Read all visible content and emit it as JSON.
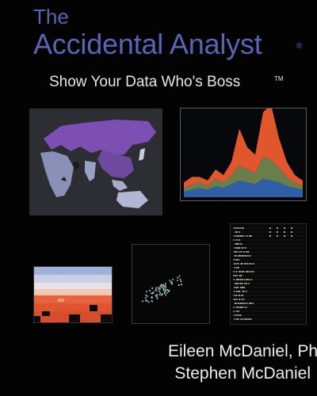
{
  "cover": {
    "title_line1": "The",
    "title_line2": "Accidental Analyst",
    "registered_mark": "®",
    "subtitle": "Show Your Data Who's Boss",
    "trademark": "TM",
    "authors": [
      "Eileen McDaniel, PhD",
      "Stephen McDaniel"
    ]
  },
  "colors": {
    "title": "#5a64b4",
    "subtitle": "#e6e6e6",
    "background": "#030303"
  },
  "illustrations": {
    "map_label": "world-map-thumbnail",
    "area_chart_label": "stacked-area-chart-thumbnail",
    "heatmap_label": "heatmap-thumbnail",
    "scatter_label": "scatter-plot-thumbnail",
    "dot_plot_label": "dot-plot-thumbnail",
    "area_series": {
      "blue": [
        3,
        4,
        5,
        4,
        6,
        5,
        7,
        9,
        8,
        7,
        10,
        9,
        8,
        6,
        5,
        4
      ],
      "green": [
        2,
        3,
        3,
        2,
        4,
        3,
        5,
        8,
        7,
        6,
        12,
        11,
        8,
        5,
        3,
        2
      ],
      "red": [
        3,
        4,
        3,
        3,
        5,
        4,
        7,
        20,
        12,
        10,
        24,
        30,
        16,
        8,
        4,
        3
      ]
    }
  }
}
